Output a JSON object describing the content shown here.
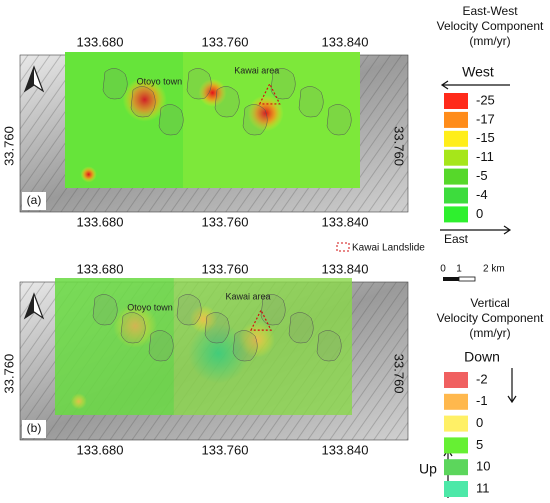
{
  "panels": [
    {
      "label": "(a)",
      "places": [
        "Otoyo town",
        "Kawai area"
      ],
      "top_ticks": [
        "133.680",
        "133.760",
        "133.840"
      ],
      "bottom_ticks": [
        "133.680",
        "133.760",
        "133.840"
      ],
      "left_tick": "33.760",
      "right_tick": "33.760"
    },
    {
      "label": "(b)",
      "places": [
        "Otoyo town",
        "Kawai area"
      ],
      "top_ticks": [
        "133.680",
        "133.760",
        "133.840"
      ],
      "bottom_ticks": [
        "133.680",
        "133.760",
        "133.840"
      ],
      "left_tick": "33.760",
      "right_tick": "33.760"
    }
  ],
  "legends": [
    {
      "title_lines": [
        "East-West",
        "Velocity Component",
        "(mm/yr)"
      ],
      "top_arrow": "West",
      "bottom_arrow": "East",
      "items": [
        {
          "label": -25,
          "color": "#ff2a1a"
        },
        {
          "label": -17,
          "color": "#ff8c1a"
        },
        {
          "label": -15,
          "color": "#ffee1a"
        },
        {
          "label": -11,
          "color": "#a6e61a"
        },
        {
          "label": -5,
          "color": "#56d82a"
        },
        {
          "label": -4,
          "color": "#3ddc3d"
        },
        {
          "label": 0,
          "color": "#2ef02e"
        }
      ]
    },
    {
      "title_lines": [
        "Vertical",
        "Velocity Component",
        "(mm/yr)"
      ],
      "top_arrow": "Down",
      "bottom_arrow": "Up",
      "items": [
        {
          "label": -2,
          "color": "#f06060"
        },
        {
          "label": -1,
          "color": "#ffb84d"
        },
        {
          "label": 0,
          "color": "#fff066"
        },
        {
          "label": 5,
          "color": "#66f033"
        },
        {
          "label": 10,
          "color": "#5cd65c"
        },
        {
          "label": 11,
          "color": "#4de8a8"
        }
      ]
    }
  ],
  "landslide_key": "Kawai Landslide",
  "scale_bar": [
    "0",
    "1",
    "2 km"
  ]
}
